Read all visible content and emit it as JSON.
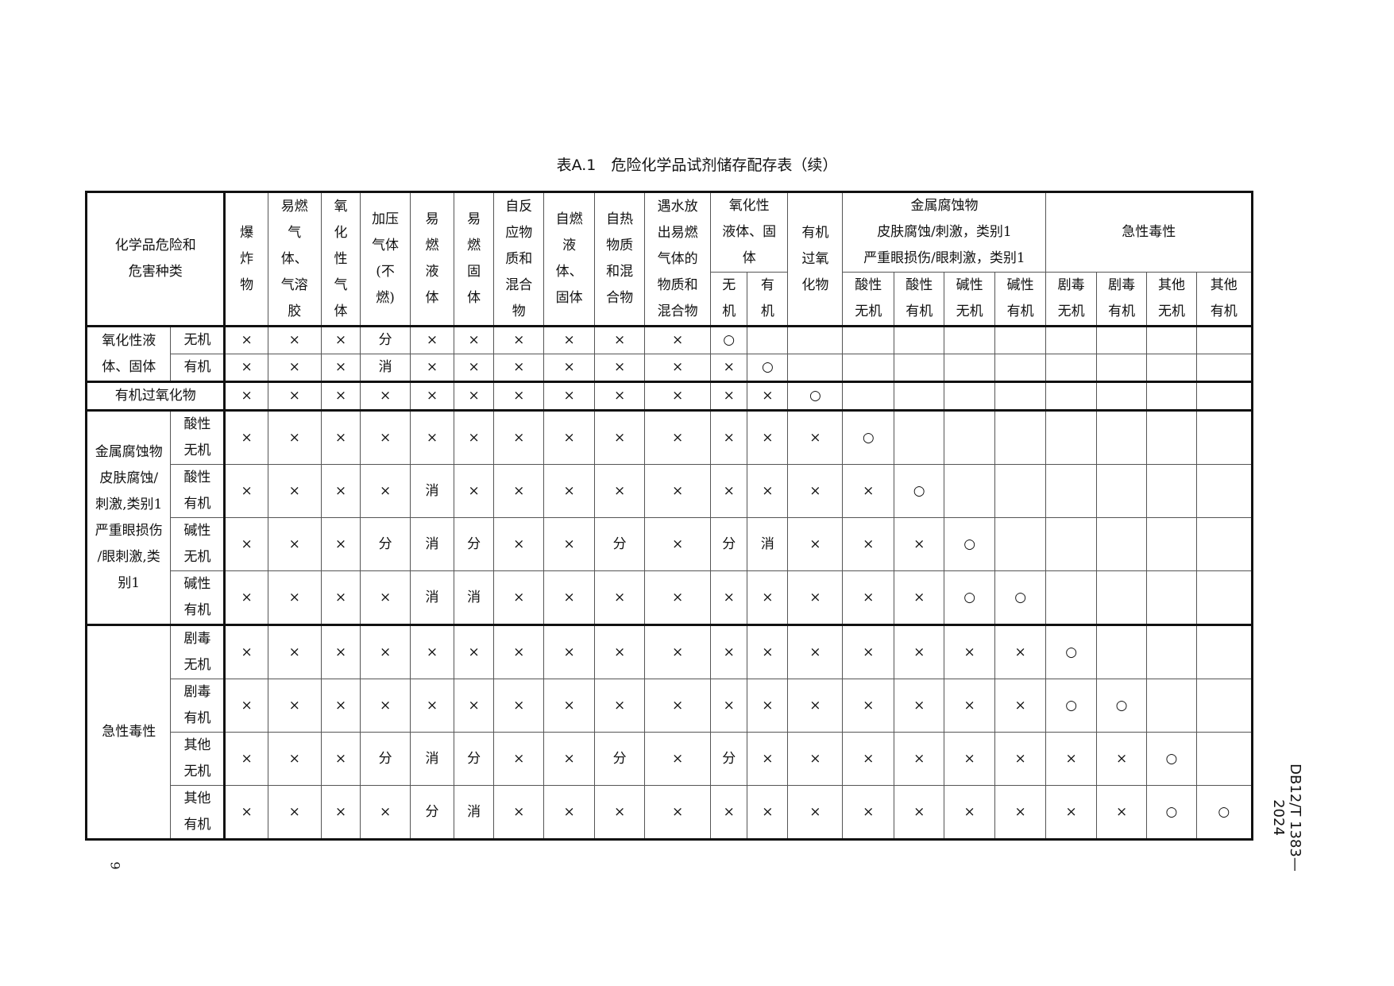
{
  "title": {
    "main": "表A.1　危险化学品试剂储存配存表",
    "cont": "（续）"
  },
  "header": {
    "corner": "化学品危险和\n危害种类",
    "cols": [
      "爆\n炸\n物",
      "易燃\n气\n体、\n气溶\n胶",
      "氧\n化\n性\n气\n体",
      "加压\n气体\n(不\n燃)",
      "易\n燃\n液\n体",
      "易\n燃\n固\n体",
      "自反\n应物\n质和\n混合\n物",
      "自燃\n液\n体、\n固体",
      "自热\n物质\n和混\n合物",
      "遇水放\n出易燃\n气体的\n物质和\n混合物"
    ],
    "oxidizing": {
      "label": "氧化性\n液体、固\n体",
      "subs": [
        "无\n机",
        "有\n机"
      ]
    },
    "peroxide": "有机\n过氧\n化物",
    "corrosive": {
      "label": "金属腐蚀物\n皮肤腐蚀/刺激，类别1\n严重眼损伤/眼刺激，类别1",
      "subs": [
        "酸性\n无机",
        "酸性\n有机",
        "碱性\n无机",
        "碱性\n有机"
      ]
    },
    "toxic": {
      "label": "急性毒性",
      "subs": [
        "剧毒\n无机",
        "剧毒\n有机",
        "其他\n无机",
        "其他\n有机"
      ]
    }
  },
  "groups": {
    "oxidizing": "氧化性液\n体、固体",
    "peroxide": "有机过氧化物",
    "corrosive": "金属腐蚀物\n皮肤腐蚀/\n刺激,类别1\n严重眼损伤\n/眼刺激,类\n别1",
    "toxic": "急性毒性"
  },
  "rows": [
    {
      "sub": "无机",
      "cells": [
        "×",
        "×",
        "×",
        "分",
        "×",
        "×",
        "×",
        "×",
        "×",
        "×",
        "○",
        "",
        "",
        "",
        "",
        "",
        "",
        "",
        "",
        "",
        ""
      ]
    },
    {
      "sub": "有机",
      "cells": [
        "×",
        "×",
        "×",
        "消",
        "×",
        "×",
        "×",
        "×",
        "×",
        "×",
        "×",
        "○",
        "",
        "",
        "",
        "",
        "",
        "",
        "",
        "",
        ""
      ]
    },
    {
      "sub": "",
      "cells": [
        "×",
        "×",
        "×",
        "×",
        "×",
        "×",
        "×",
        "×",
        "×",
        "×",
        "×",
        "×",
        "○",
        "",
        "",
        "",
        "",
        "",
        "",
        "",
        ""
      ]
    },
    {
      "sub": "酸性\n无机",
      "cells": [
        "×",
        "×",
        "×",
        "×",
        "×",
        "×",
        "×",
        "×",
        "×",
        "×",
        "×",
        "×",
        "×",
        "○",
        "",
        "",
        "",
        "",
        "",
        "",
        ""
      ]
    },
    {
      "sub": "酸性\n有机",
      "cells": [
        "×",
        "×",
        "×",
        "×",
        "消",
        "×",
        "×",
        "×",
        "×",
        "×",
        "×",
        "×",
        "×",
        "×",
        "○",
        "",
        "",
        "",
        "",
        "",
        ""
      ]
    },
    {
      "sub": "碱性\n无机",
      "cells": [
        "×",
        "×",
        "×",
        "分",
        "消",
        "分",
        "×",
        "×",
        "分",
        "×",
        "分",
        "消",
        "×",
        "×",
        "×",
        "○",
        "",
        "",
        "",
        "",
        ""
      ]
    },
    {
      "sub": "碱性\n有机",
      "cells": [
        "×",
        "×",
        "×",
        "×",
        "消",
        "消",
        "×",
        "×",
        "×",
        "×",
        "×",
        "×",
        "×",
        "×",
        "×",
        "○",
        "○",
        "",
        "",
        "",
        ""
      ]
    },
    {
      "sub": "剧毒\n无机",
      "cells": [
        "×",
        "×",
        "×",
        "×",
        "×",
        "×",
        "×",
        "×",
        "×",
        "×",
        "×",
        "×",
        "×",
        "×",
        "×",
        "×",
        "×",
        "○",
        "",
        "",
        ""
      ]
    },
    {
      "sub": "剧毒\n有机",
      "cells": [
        "×",
        "×",
        "×",
        "×",
        "×",
        "×",
        "×",
        "×",
        "×",
        "×",
        "×",
        "×",
        "×",
        "×",
        "×",
        "×",
        "×",
        "○",
        "○",
        "",
        ""
      ]
    },
    {
      "sub": "其他\n无机",
      "cells": [
        "×",
        "×",
        "×",
        "分",
        "消",
        "分",
        "×",
        "×",
        "分",
        "×",
        "分",
        "×",
        "×",
        "×",
        "×",
        "×",
        "×",
        "×",
        "×",
        "○",
        ""
      ]
    },
    {
      "sub": "其他\n有机",
      "cells": [
        "×",
        "×",
        "×",
        "×",
        "分",
        "消",
        "×",
        "×",
        "×",
        "×",
        "×",
        "×",
        "×",
        "×",
        "×",
        "×",
        "×",
        "×",
        "×",
        "○",
        "○"
      ]
    }
  ],
  "page_number": "9",
  "doc_id": "DB12/T 1383—2024"
}
